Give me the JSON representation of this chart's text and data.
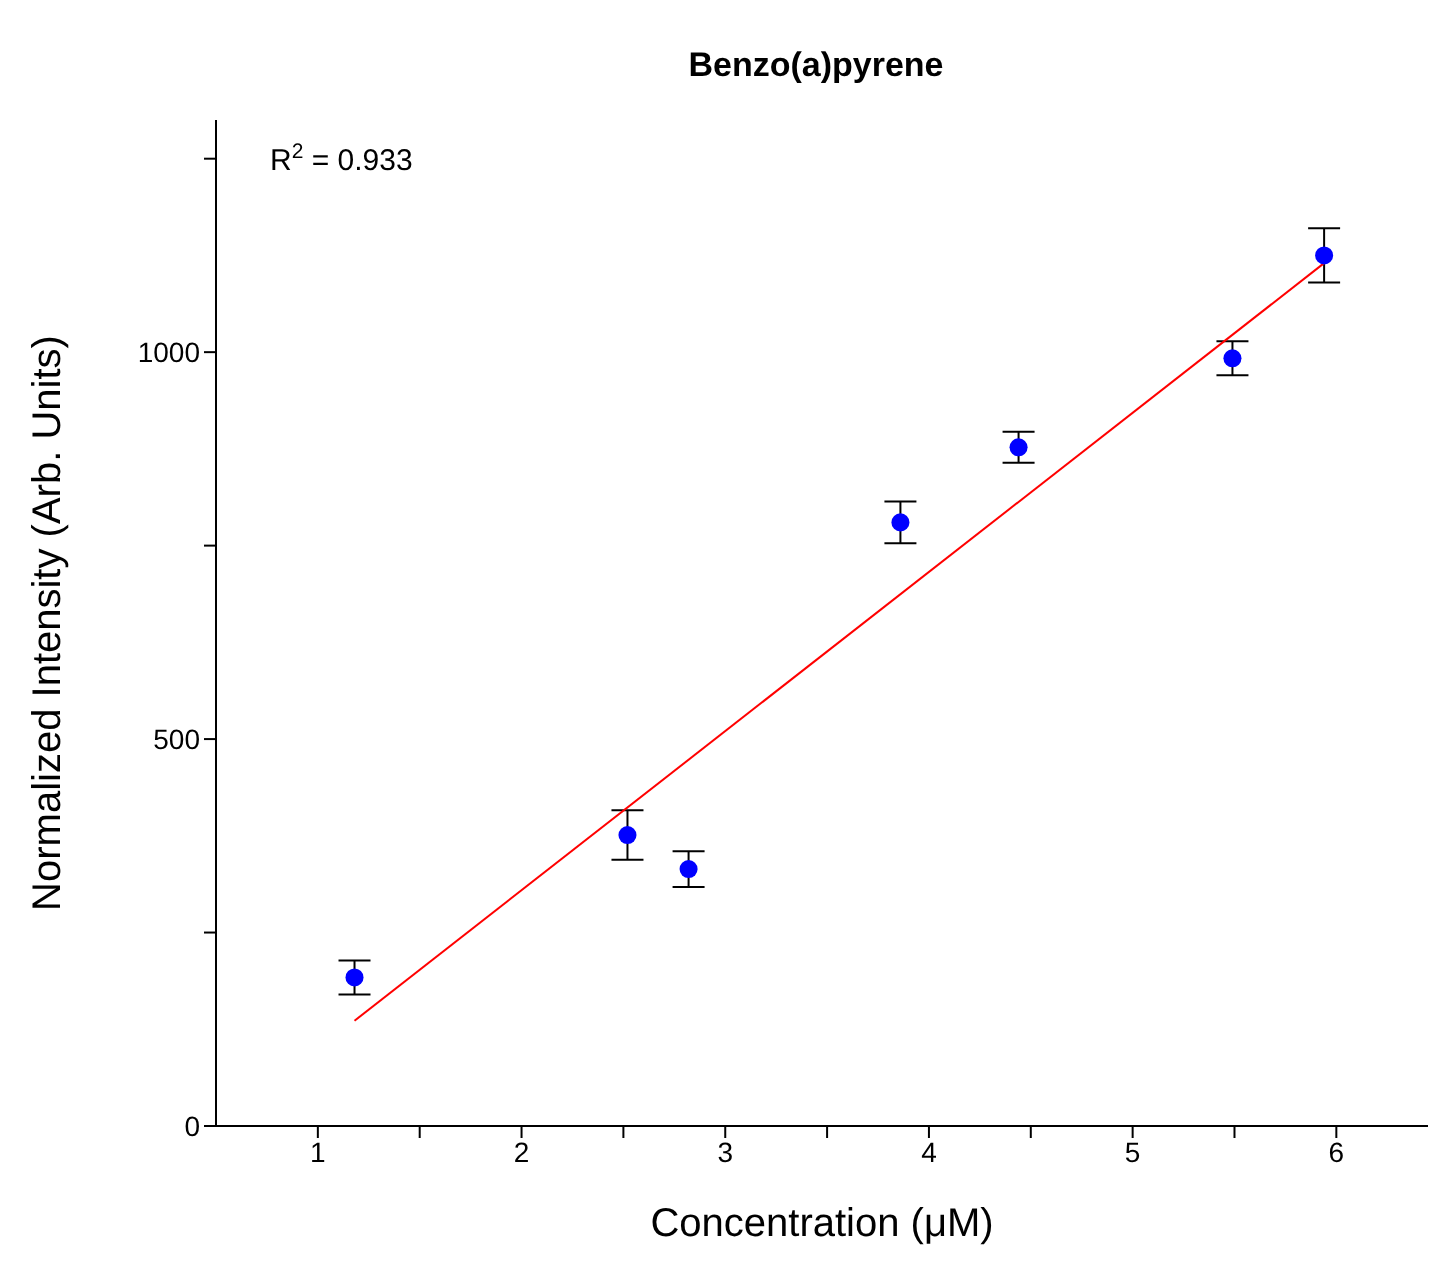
{
  "chart_data": {
    "type": "scatter",
    "title": "Benzo(a)pyrene",
    "xlabel": "Concentration (μM)",
    "ylabel": "Normalized Intensity (Arb. Units)",
    "annotations": [
      "R$^{2}$ = 0.933"
    ],
    "series": [
      {
        "color": "#0000ff",
        "x": [
          1.18,
          2.52,
          2.82,
          3.86,
          4.44,
          5.49,
          5.94
        ],
        "values": [
          192,
          376,
          332,
          780,
          877,
          992,
          1125
        ],
        "errors": [
          22,
          32,
          23,
          27,
          20,
          22,
          35
        ],
        "marker": "circle"
      },
      {
        "type": "line",
        "color": "#ff0000",
        "x": [
          1.18,
          5.94
        ],
        "values": [
          136,
          1115
        ],
        "marker": "none"
      }
    ],
    "xlim": [
      0.5,
      6.45
    ],
    "xticks": [
      1,
      {
        "value": 1.5,
        "label": null
      },
      2,
      {
        "value": 2.5,
        "label": null
      },
      3,
      {
        "value": 3.5,
        "label": null
      },
      4,
      {
        "value": 4.5,
        "label": null
      },
      5,
      {
        "value": 5.5,
        "label": null
      },
      6
    ],
    "ylim": [
      0,
      1300
    ],
    "yticks": [
      0,
      {
        "value": 250,
        "label": null
      },
      500,
      {
        "value": 750,
        "label": null
      },
      1000,
      {
        "value": 1250,
        "label": null
      }
    ],
    "grid": false,
    "legend": false
  }
}
